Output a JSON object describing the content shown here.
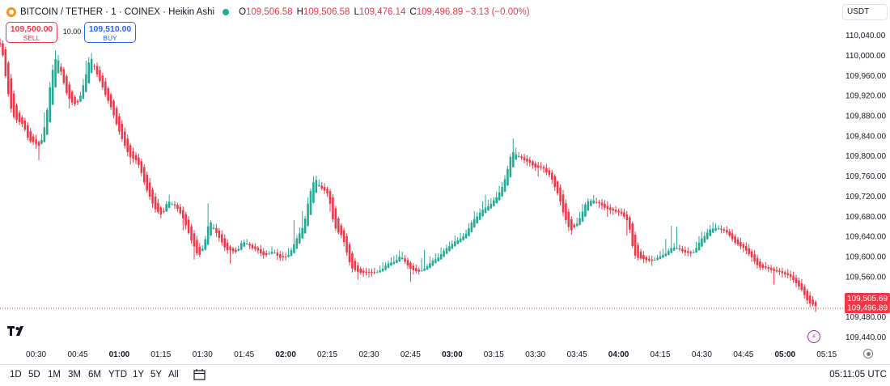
{
  "legend": {
    "symbol": "BITCOIN / TETHER · 1 · COINEX · Heikin Ashi",
    "o_label": "O",
    "o_value": "109,506.58",
    "h_label": "H",
    "h_value": "109,506.58",
    "l_label": "L",
    "l_value": "109,476.14",
    "c_label": "C",
    "c_value": "109,496.89",
    "change": "−3.13 (−0.00%)"
  },
  "trade": {
    "sell_price": "109,500.00",
    "sell_label": "SELL",
    "spread": "10.00",
    "buy_price": "109,510.00",
    "buy_label": "BUY"
  },
  "currency": "USDT",
  "time_ranges": [
    "1D",
    "5D",
    "1M",
    "3M",
    "6M",
    "YTD",
    "1Y",
    "5Y",
    "All"
  ],
  "clock": "05:11:05 UTC",
  "icons": [
    "bitcoin-coin-icon",
    "market-status-icon",
    "calendar-icon",
    "tradingview-logo",
    "lightning-icon",
    "settings-icon"
  ],
  "colors": {
    "up": "#22ab94",
    "down": "#f23645"
  },
  "chart_data": {
    "type": "candlestick",
    "style": "Heikin Ashi",
    "interval_minutes": 1,
    "x_start": "00:17",
    "x_end": "05:11",
    "x_ticks": [
      "00:30",
      "00:45",
      "01:00",
      "01:15",
      "01:30",
      "01:45",
      "02:00",
      "02:15",
      "02:30",
      "02:45",
      "03:00",
      "03:15",
      "03:30",
      "03:45",
      "04:00",
      "04:15",
      "04:30",
      "04:45",
      "05:00",
      "05:15"
    ],
    "x_ticks_bold": [
      "01:00",
      "02:00",
      "03:00",
      "04:00",
      "05:00"
    ],
    "y_ticks": [
      "110,040.00",
      "110,000.00",
      "109,960.00",
      "109,920.00",
      "109,880.00",
      "109,840.00",
      "109,800.00",
      "109,760.00",
      "109,720.00",
      "109,680.00",
      "109,640.00",
      "109,600.00",
      "109,560.00",
      "109,480.00",
      "109,440.00"
    ],
    "ylim": [
      109418,
      110062
    ],
    "last_price_label": "109,505.69",
    "close_price_label": "109,496.89",
    "close_price": 109496.89,
    "grid": false,
    "anchors": [
      [
        "00:17",
        110020
      ],
      [
        "00:19",
        109940
      ],
      [
        "00:21",
        109880
      ],
      [
        "00:25",
        109860
      ],
      [
        "00:27",
        109830
      ],
      [
        "00:31",
        109820
      ],
      [
        "00:33",
        109870
      ],
      [
        "00:35",
        109960
      ],
      [
        "00:37",
        110005
      ],
      [
        "00:40",
        109930
      ],
      [
        "00:43",
        109900
      ],
      [
        "00:45",
        109910
      ],
      [
        "00:47",
        109950
      ],
      [
        "00:49",
        110000
      ],
      [
        "00:51",
        109970
      ],
      [
        "00:54",
        109930
      ],
      [
        "00:57",
        109890
      ],
      [
        "01:00",
        109840
      ],
      [
        "01:03",
        109800
      ],
      [
        "01:06",
        109790
      ],
      [
        "01:09",
        109740
      ],
      [
        "01:12",
        109700
      ],
      [
        "01:15",
        109680
      ],
      [
        "01:17",
        109710
      ],
      [
        "01:20",
        109700
      ],
      [
        "01:23",
        109670
      ],
      [
        "01:25",
        109640
      ],
      [
        "01:28",
        109600
      ],
      [
        "01:30",
        109620
      ],
      [
        "01:32",
        109670
      ],
      [
        "01:35",
        109640
      ],
      [
        "01:38",
        109615
      ],
      [
        "01:42",
        109610
      ],
      [
        "01:44",
        109630
      ],
      [
        "01:47",
        109620
      ],
      [
        "01:50",
        109610
      ],
      [
        "01:52",
        109600
      ],
      [
        "01:55",
        109610
      ],
      [
        "01:58",
        109595
      ],
      [
        "02:00",
        109600
      ],
      [
        "02:03",
        109630
      ],
      [
        "02:06",
        109660
      ],
      [
        "02:08",
        109720
      ],
      [
        "02:10",
        109760
      ],
      [
        "02:12",
        109740
      ],
      [
        "02:15",
        109720
      ],
      [
        "02:17",
        109660
      ],
      [
        "02:20",
        109640
      ],
      [
        "02:23",
        109580
      ],
      [
        "02:25",
        109570
      ],
      [
        "02:30",
        109570
      ],
      [
        "02:33",
        109570
      ],
      [
        "02:36",
        109585
      ],
      [
        "02:39",
        109590
      ],
      [
        "02:41",
        109600
      ],
      [
        "02:44",
        109580
      ],
      [
        "02:46",
        109570
      ],
      [
        "02:49",
        109575
      ],
      [
        "02:52",
        109590
      ],
      [
        "02:55",
        109600
      ],
      [
        "02:58",
        109620
      ],
      [
        "03:01",
        109630
      ],
      [
        "03:04",
        109640
      ],
      [
        "03:07",
        109670
      ],
      [
        "03:10",
        109690
      ],
      [
        "03:13",
        109700
      ],
      [
        "03:16",
        109720
      ],
      [
        "03:19",
        109760
      ],
      [
        "03:21",
        109810
      ],
      [
        "03:23",
        109800
      ],
      [
        "03:26",
        109790
      ],
      [
        "03:29",
        109780
      ],
      [
        "03:32",
        109775
      ],
      [
        "03:35",
        109760
      ],
      [
        "03:38",
        109720
      ],
      [
        "03:40",
        109680
      ],
      [
        "03:42",
        109650
      ],
      [
        "03:45",
        109670
      ],
      [
        "03:48",
        109710
      ],
      [
        "03:51",
        109710
      ],
      [
        "03:54",
        109700
      ],
      [
        "03:57",
        109690
      ],
      [
        "04:00",
        109690
      ],
      [
        "04:03",
        109670
      ],
      [
        "04:05",
        109605
      ],
      [
        "04:08",
        109595
      ],
      [
        "04:11",
        109590
      ],
      [
        "04:14",
        109600
      ],
      [
        "04:17",
        109610
      ],
      [
        "04:20",
        109620
      ],
      [
        "04:23",
        109610
      ],
      [
        "04:26",
        109605
      ],
      [
        "04:29",
        109630
      ],
      [
        "04:32",
        109650
      ],
      [
        "04:35",
        109660
      ],
      [
        "04:38",
        109650
      ],
      [
        "04:41",
        109630
      ],
      [
        "04:44",
        109620
      ],
      [
        "04:47",
        109600
      ],
      [
        "04:50",
        109580
      ],
      [
        "04:53",
        109575
      ],
      [
        "04:57",
        109570
      ],
      [
        "05:00",
        109565
      ],
      [
        "05:03",
        109550
      ],
      [
        "05:06",
        109530
      ],
      [
        "05:08",
        109510
      ],
      [
        "05:11",
        109497
      ]
    ]
  }
}
